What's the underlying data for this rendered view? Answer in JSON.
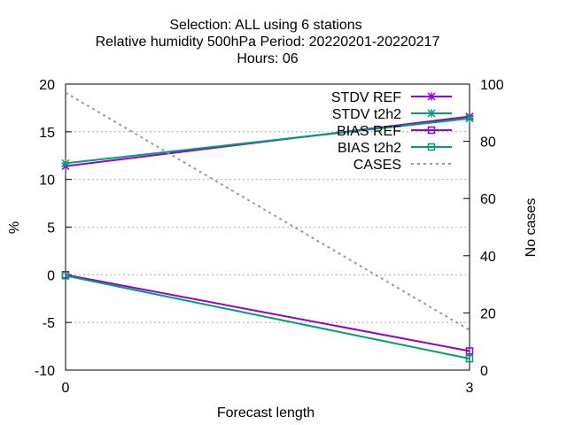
{
  "title": {
    "line1": "Selection: ALL using      6 stations",
    "line2": "Relative humidity 500hPa   Period: 20220201-20220217",
    "line3": "Hours:  06"
  },
  "chart_data": {
    "type": "line",
    "x": [
      0,
      3
    ],
    "x_ticks": [
      "0",
      "3"
    ],
    "xlabel": "Forecast length",
    "xlim": [
      0,
      3
    ],
    "ylabel": "%",
    "ylim": [
      -10,
      20
    ],
    "y_ticks": [
      "-10",
      "-5",
      "0",
      "5",
      "10",
      "15",
      "20"
    ],
    "y2label": "No cases",
    "y2lim": [
      0,
      100
    ],
    "y2_ticks": [
      "0",
      "20",
      "40",
      "60",
      "80",
      "100"
    ],
    "grid": true,
    "legend_position": "top-right",
    "series": [
      {
        "name": "STDV REF",
        "axis": "y",
        "values": [
          11.4,
          16.6
        ],
        "color": "#9400d3",
        "marker": "star",
        "dash": "solid"
      },
      {
        "name": "STDV t2h2",
        "axis": "y",
        "values": [
          11.7,
          16.4
        ],
        "color": "#009e73",
        "marker": "star",
        "dash": "solid"
      },
      {
        "name": "BIAS REF",
        "axis": "y",
        "values": [
          0.0,
          -8.0
        ],
        "color": "#9400d3",
        "marker": "square",
        "dash": "solid"
      },
      {
        "name": "BIAS t2h2",
        "axis": "y",
        "values": [
          -0.1,
          -8.8
        ],
        "color": "#009e73",
        "marker": "square",
        "dash": "solid"
      },
      {
        "name": "CASES",
        "axis": "y2",
        "values": [
          97,
          14
        ],
        "color": "#999999",
        "marker": "none",
        "dash": "dashed"
      }
    ]
  }
}
